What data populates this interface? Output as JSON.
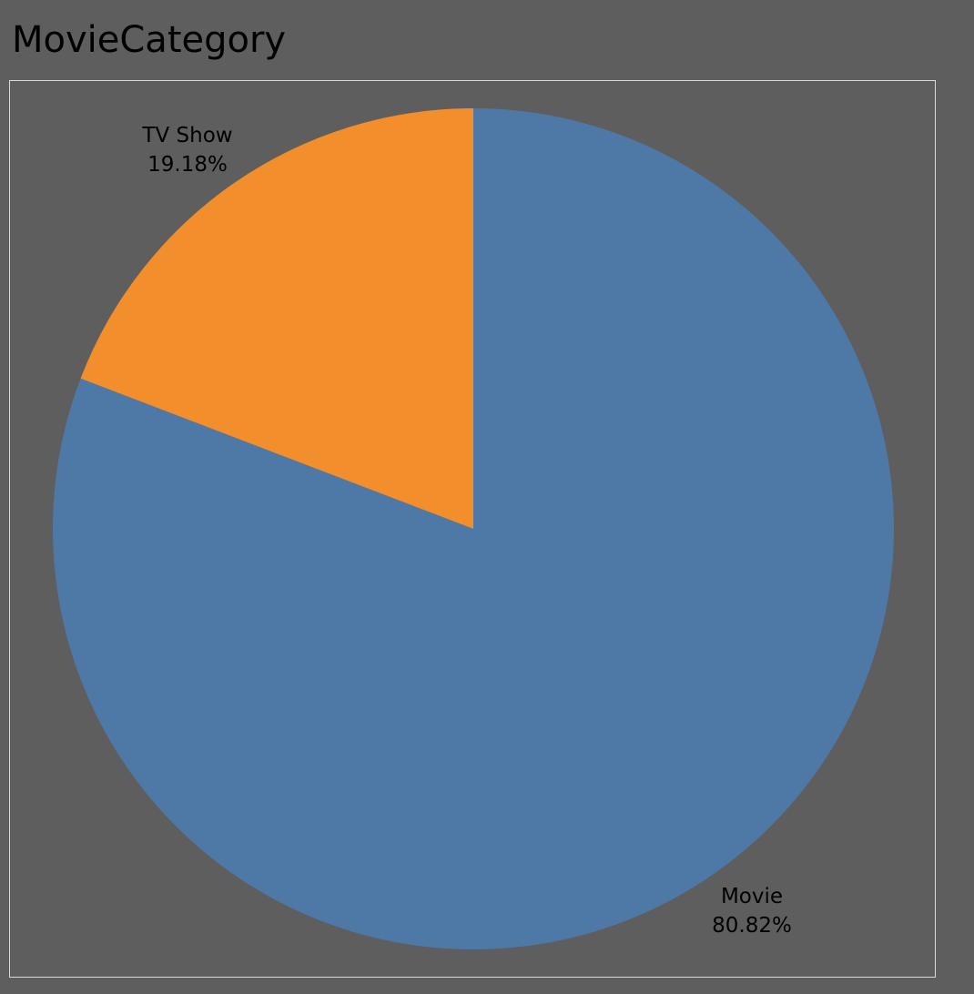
{
  "chart_data": {
    "type": "pie",
    "title": "MovieCategory",
    "slices": [
      {
        "label": "Movie",
        "value": 80.82,
        "value_label": "80.82%",
        "color": "#4e79a7"
      },
      {
        "label": "TV Show",
        "value": 19.18,
        "value_label": "19.18%",
        "color": "#f28e2b"
      }
    ],
    "start_angle_deg": 0,
    "direction": "clockwise",
    "background_color": "#5e5e5e",
    "frame_color": "#d9d9d9"
  }
}
